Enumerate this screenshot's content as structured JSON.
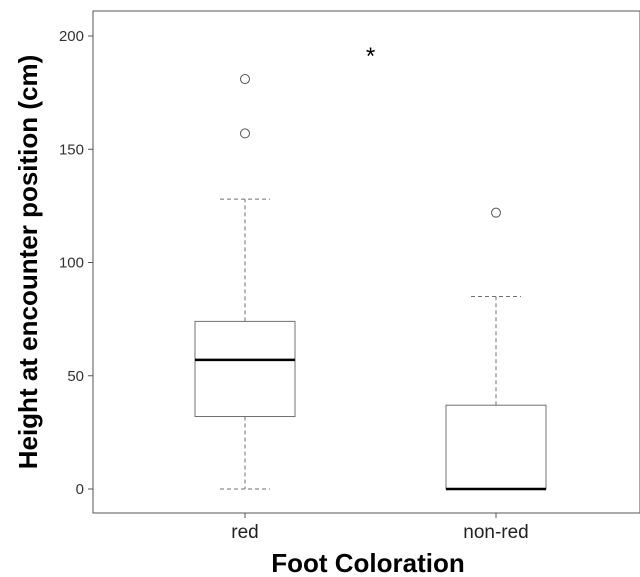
{
  "chart_data": {
    "type": "box",
    "title": "",
    "xlabel": "Foot Coloration",
    "ylabel": "Height at encounter position (cm)",
    "ylim": [
      -12,
      212
    ],
    "yticks": [
      0,
      50,
      100,
      150,
      200
    ],
    "categories": [
      "red",
      "non-red"
    ],
    "boxes": [
      {
        "category": "red",
        "whisker_low": 0,
        "q1": 32,
        "median": 57,
        "q3": 74,
        "whisker_high": 128,
        "outliers": [
          157,
          181
        ]
      },
      {
        "category": "non-red",
        "whisker_low": 0,
        "q1": 0,
        "median": 0,
        "q3": 37,
        "whisker_high": 85,
        "outliers": [
          122
        ]
      }
    ],
    "annotation": {
      "text": "*",
      "x": 1.5,
      "y": 193
    },
    "grid": false,
    "legend": "none",
    "colors": {
      "box_fill": "#ffffff",
      "box_stroke": "#707070",
      "median": "#000000",
      "whisker": "#707070",
      "axis": "#555555"
    }
  }
}
